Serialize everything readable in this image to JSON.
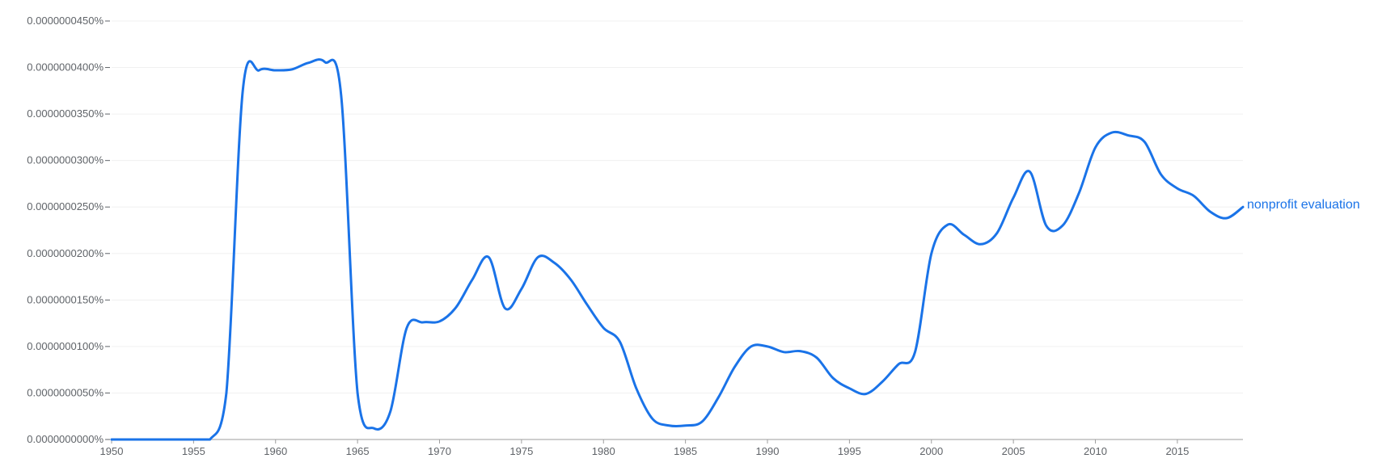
{
  "chart_data": {
    "type": "line",
    "title": "",
    "xlabel": "",
    "ylabel": "",
    "xlim": [
      1950,
      2019
    ],
    "ylim": [
      0,
      4.5e-09
    ],
    "x_ticks": [
      1950,
      1955,
      1960,
      1965,
      1970,
      1975,
      1980,
      1985,
      1990,
      1995,
      2000,
      2005,
      2010,
      2015
    ],
    "x_tick_labels": [
      "1950",
      "1955",
      "1960",
      "1965",
      "1970",
      "1975",
      "1980",
      "1985",
      "1990",
      "1995",
      "2000",
      "2005",
      "2010",
      "2015"
    ],
    "y_ticks": [
      0,
      5e-10,
      1e-09,
      1.5e-09,
      2e-09,
      2.5e-09,
      3e-09,
      3.5e-09,
      4e-09,
      4.5e-09
    ],
    "y_tick_labels": [
      "0.0000000000%",
      "0.0000000050%",
      "0.0000000100%",
      "0.0000000150%",
      "0.0000000200%",
      "0.0000000250%",
      "0.0000000300%",
      "0.0000000350%",
      "0.0000000400%",
      "0.0000000450%"
    ],
    "grid": true,
    "legend": "inline-right",
    "series": [
      {
        "name": "nonprofit evaluation",
        "color": "#1a73e8",
        "x": [
          1950,
          1951,
          1952,
          1953,
          1954,
          1955,
          1956,
          1957,
          1958,
          1959,
          1960,
          1961,
          1962,
          1963,
          1964,
          1965,
          1966,
          1967,
          1968,
          1969,
          1970,
          1971,
          1972,
          1973,
          1974,
          1975,
          1976,
          1977,
          1978,
          1979,
          1980,
          1981,
          1982,
          1983,
          1984,
          1985,
          1986,
          1987,
          1988,
          1989,
          1990,
          1991,
          1992,
          1993,
          1994,
          1995,
          1996,
          1997,
          1998,
          1999,
          2000,
          2001,
          2002,
          2003,
          2004,
          2005,
          2006,
          2007,
          2008,
          2009,
          2010,
          2011,
          2012,
          2013,
          2014,
          2015,
          2016,
          2017,
          2018,
          2019
        ],
        "values": [
          0,
          0,
          0,
          0,
          0,
          0,
          0,
          5e-10,
          3.75e-09,
          3.97e-09,
          3.97e-09,
          3.98e-09,
          4.05e-09,
          4.06e-09,
          3.7e-09,
          5e-10,
          1.2e-10,
          3e-10,
          1.2e-09,
          1.26e-09,
          1.27e-09,
          1.42e-09,
          1.72e-09,
          1.96e-09,
          1.41e-09,
          1.62e-09,
          1.96e-09,
          1.9e-09,
          1.72e-09,
          1.45e-09,
          1.2e-09,
          1.05e-09,
          5.5e-10,
          2.2e-10,
          1.5e-10,
          1.5e-10,
          1.9e-10,
          4.5e-10,
          7.8e-10,
          1e-09,
          1e-09,
          9.4e-10,
          9.5e-10,
          8.8e-10,
          6.6e-10,
          5.5e-10,
          4.9e-10,
          6.2e-10,
          8.1e-10,
          9.4e-10,
          2e-09,
          2.31e-09,
          2.2e-09,
          2.1e-09,
          2.22e-09,
          2.6e-09,
          2.88e-09,
          2.3e-09,
          2.3e-09,
          2.65e-09,
          3.14e-09,
          3.3e-09,
          3.27e-09,
          3.2e-09,
          2.85e-09,
          2.7e-09,
          2.62e-09,
          2.45e-09,
          2.38e-09,
          2.5e-09
        ]
      }
    ]
  }
}
